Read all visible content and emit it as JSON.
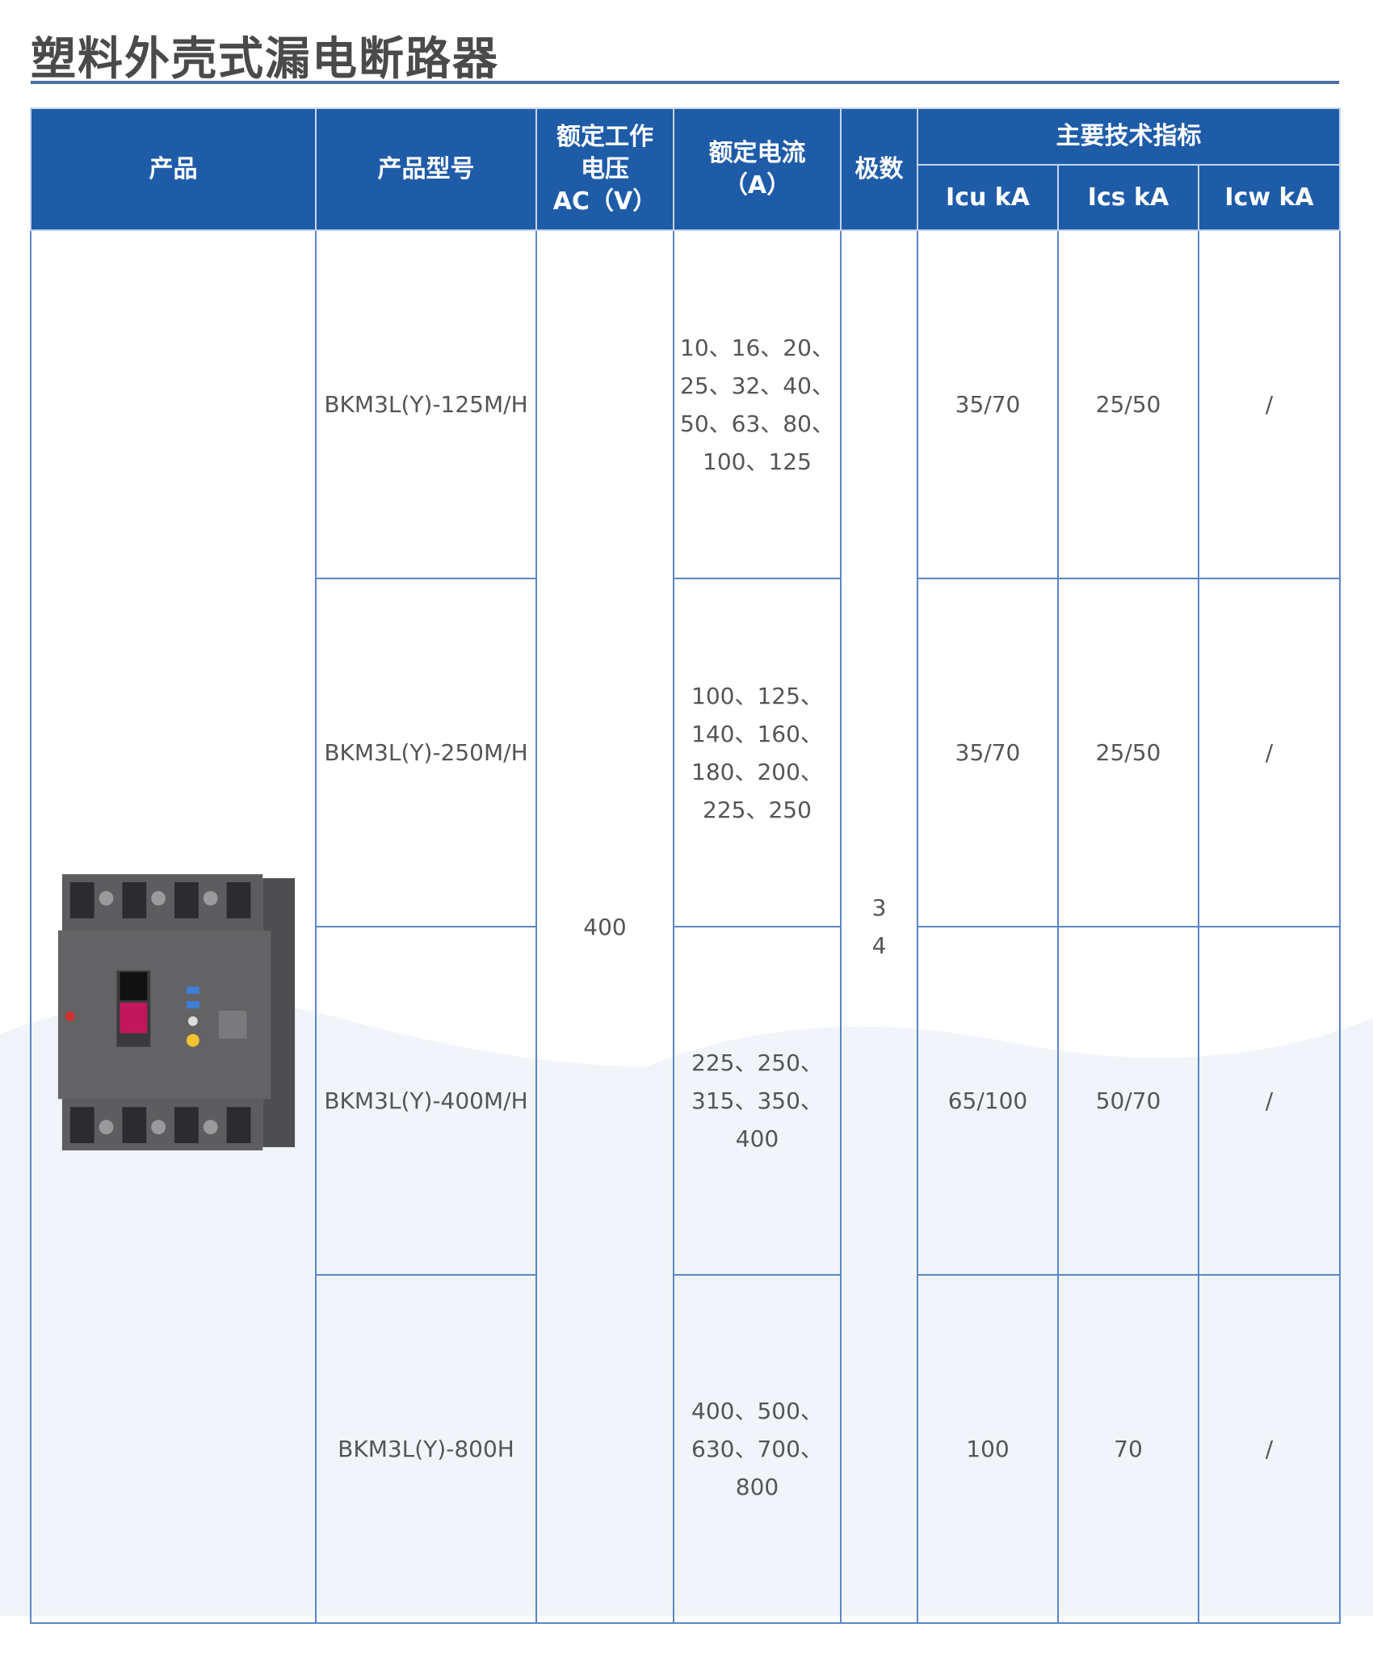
{
  "title": "塑料外壳式漏电断路器",
  "header": {
    "product": "产品",
    "model": "产品型号",
    "voltage": [
      "额定工作",
      "电压",
      "AC（V）"
    ],
    "current": [
      "额定电流",
      "（A）"
    ],
    "poles": "极数",
    "tech": "主要技术指标",
    "icu": "Icu kA",
    "ics": "Ics kA",
    "icw": "Icw kA"
  },
  "shared": {
    "voltage": "400",
    "poles": [
      "3",
      "4"
    ]
  },
  "rows": [
    {
      "model": "BKM3L(Y)-125M/H",
      "current": [
        "10、16、20、",
        "25、32、40、",
        "50、63、80、",
        "100、125"
      ],
      "icu": "35/70",
      "ics": "25/50",
      "icw": "/"
    },
    {
      "model": "BKM3L(Y)-250M/H",
      "current": [
        "100、125、",
        "140、160、",
        "180、200、",
        "225、250"
      ],
      "icu": "35/70",
      "ics": "25/50",
      "icw": "/"
    },
    {
      "model": "BKM3L(Y)-400M/H",
      "current": [
        "225、250、",
        "315、350、400"
      ],
      "icu": "65/100",
      "ics": "50/70",
      "icw": "/"
    },
    {
      "model": "BKM3L(Y)-800H",
      "current": [
        "400、500、",
        "630、700、",
        "800"
      ],
      "icu": "100",
      "ics": "70",
      "icw": "/"
    }
  ],
  "colors": {
    "header_bg": "#1f5ca8",
    "border": "#5b86c6",
    "title": "#4a4a4a"
  },
  "image": {
    "icon": "circuit-breaker-photo"
  }
}
